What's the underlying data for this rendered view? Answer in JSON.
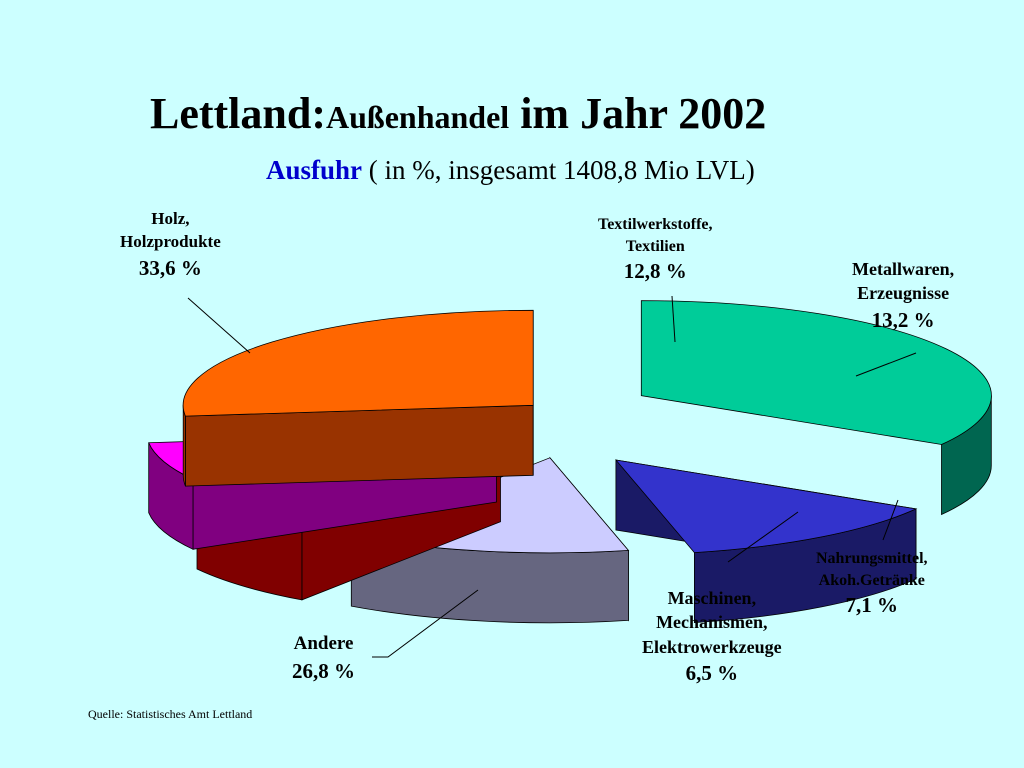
{
  "title": {
    "part1": "Lettland:",
    "part2": "Außenhandel",
    "part3": " im Jahr 2002"
  },
  "subtitle": {
    "strong": "Ausfuhr",
    "rest": " ( in %, insgesamt 1408,8 Mio LVL)"
  },
  "source": "Quelle: Statistisches Amt Lettland",
  "chart_data": {
    "type": "pie",
    "style": "3d-exploded",
    "unit": "%",
    "slices": [
      {
        "label_lines": [
          "Holz,",
          "Holzprodukte"
        ],
        "value": 33.6,
        "value_label": "33,6 %",
        "color": "#00cc99",
        "side_color": "#006650"
      },
      {
        "label_lines": [
          "Textilwerkstoffe,",
          "Textilien"
        ],
        "value": 12.8,
        "value_label": "12,8 %",
        "color": "#3333cc",
        "side_color": "#1a1a66"
      },
      {
        "label_lines": [
          "Metallwaren,",
          "Erzeugnisse"
        ],
        "value": 13.2,
        "value_label": "13,2 %",
        "color": "#ccccff",
        "side_color": "#666680"
      },
      {
        "label_lines": [
          "Nahrungsmittel,",
          "Akoh.Getränke"
        ],
        "value": 7.1,
        "value_label": "7,1 %",
        "color": "#ff0000",
        "side_color": "#800000"
      },
      {
        "label_lines": [
          "Maschinen,",
          "Mechanismen,",
          "Elektrowerkzeuge"
        ],
        "value": 6.5,
        "value_label": "6,5 %",
        "color": "#ff00ff",
        "side_color": "#800080"
      },
      {
        "label_lines": [
          "Andere"
        ],
        "value": 26.8,
        "value_label": "26,8 %",
        "color": "#ff6600",
        "side_color": "#993300"
      }
    ]
  }
}
